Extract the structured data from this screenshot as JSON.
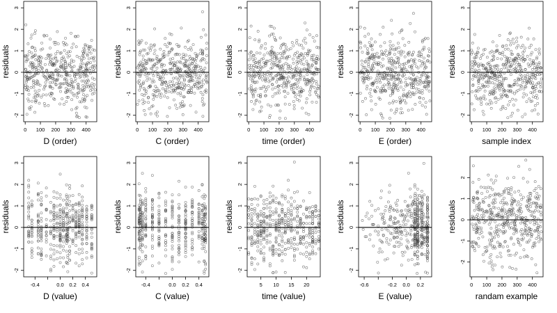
{
  "figure": {
    "layout": "2x5 grid of residual scatter plots",
    "point_style": "open circles",
    "reference_line": "horizontal line at y = 0"
  },
  "chart_data": [
    {
      "id": "p1",
      "type": "scatter",
      "xlabel": "D (order)",
      "ylabel": "residuals",
      "xlim": [
        -10,
        470
      ],
      "ylim": [
        -2.3,
        3.3
      ],
      "xticks": [
        0,
        100,
        200,
        300,
        400
      ],
      "xtick_labels": [
        "0",
        "100",
        "200",
        "300",
        "400"
      ],
      "yticks": [
        -2,
        -1,
        0,
        1,
        2,
        3
      ],
      "ytick_labels": [
        "-2",
        "-1",
        "0",
        "1",
        "2",
        "3"
      ],
      "n_points": 460,
      "x_distribution": "uniform",
      "x_range": [
        0,
        460
      ],
      "y_center": 0,
      "y_sd": 0.85,
      "hline": 0
    },
    {
      "id": "p2",
      "type": "scatter",
      "xlabel": "C (order)",
      "ylabel": "residuals",
      "xlim": [
        -10,
        470
      ],
      "ylim": [
        -2.3,
        3.3
      ],
      "xticks": [
        0,
        100,
        200,
        300,
        400
      ],
      "xtick_labels": [
        "0",
        "100",
        "200",
        "300",
        "400"
      ],
      "yticks": [
        -2,
        -1,
        0,
        1,
        2,
        3
      ],
      "ytick_labels": [
        "-2",
        "-1",
        "0",
        "1",
        "2",
        "3"
      ],
      "n_points": 460,
      "x_distribution": "uniform",
      "x_range": [
        0,
        460
      ],
      "y_center": 0,
      "y_sd": 0.85,
      "hline": 0
    },
    {
      "id": "p3",
      "type": "scatter",
      "xlabel": "time (order)",
      "ylabel": "residuals",
      "xlim": [
        -10,
        470
      ],
      "ylim": [
        -2.3,
        3.3
      ],
      "xticks": [
        0,
        100,
        200,
        300,
        400
      ],
      "xtick_labels": [
        "0",
        "100",
        "200",
        "300",
        "400"
      ],
      "yticks": [
        -2,
        -1,
        0,
        1,
        2,
        3
      ],
      "ytick_labels": [
        "-2",
        "-1",
        "0",
        "1",
        "2",
        "3"
      ],
      "n_points": 460,
      "x_distribution": "uniform",
      "x_range": [
        0,
        460
      ],
      "y_center": 0,
      "y_sd": 0.85,
      "hline": 0
    },
    {
      "id": "p4",
      "type": "scatter",
      "xlabel": "E (order)",
      "ylabel": "residuals",
      "xlim": [
        -10,
        470
      ],
      "ylim": [
        -2.3,
        3.3
      ],
      "xticks": [
        0,
        100,
        200,
        300,
        400
      ],
      "xtick_labels": [
        "0",
        "100",
        "200",
        "300",
        "400"
      ],
      "yticks": [
        -2,
        -1,
        0,
        1,
        2,
        3
      ],
      "ytick_labels": [
        "-2",
        "-1",
        "0",
        "1",
        "2",
        "3"
      ],
      "n_points": 460,
      "x_distribution": "uniform",
      "x_range": [
        0,
        460
      ],
      "y_center": 0,
      "y_sd": 0.85,
      "hline": 0
    },
    {
      "id": "p5",
      "type": "scatter",
      "xlabel": "sample index",
      "ylabel": "residuals",
      "xlim": [
        -10,
        470
      ],
      "ylim": [
        -2.3,
        3.3
      ],
      "xticks": [
        0,
        100,
        200,
        300,
        400
      ],
      "xtick_labels": [
        "0",
        "100",
        "200",
        "300",
        "400"
      ],
      "yticks": [
        -2,
        -1,
        0,
        1,
        2,
        3
      ],
      "ytick_labels": [
        "-2",
        "-1",
        "0",
        "1",
        "2",
        "3"
      ],
      "n_points": 460,
      "x_distribution": "uniform",
      "x_range": [
        0,
        460
      ],
      "y_center": 0,
      "y_sd": 0.85,
      "hline": 0
    },
    {
      "id": "p6",
      "type": "scatter",
      "xlabel": "D (value)",
      "ylabel": "residuals",
      "xlim": [
        -0.58,
        0.58
      ],
      "ylim": [
        -2.3,
        3.3
      ],
      "xticks": [
        -0.4,
        -0.2,
        0.0,
        0.2,
        0.4
      ],
      "xtick_labels": [
        "-0.4",
        "",
        "0.0",
        "0.2",
        "0.4"
      ],
      "yticks": [
        -2,
        -1,
        0,
        1,
        2,
        3
      ],
      "ytick_labels": [
        "-2",
        "-1",
        "0",
        "1",
        "2",
        "3"
      ],
      "n_points": 460,
      "x_distribution": "discrete",
      "x_levels": [
        -0.5,
        -0.45,
        -0.35,
        -0.3,
        -0.22,
        -0.15,
        -0.1,
        -0.05,
        0.0,
        0.05,
        0.1,
        0.12,
        0.15,
        0.2,
        0.25,
        0.3,
        0.35,
        0.42,
        0.5
      ],
      "y_center": 0,
      "y_sd": 0.85,
      "hline": 0
    },
    {
      "id": "p7",
      "type": "scatter",
      "xlabel": "C (value)",
      "ylabel": "residuals",
      "xlim": [
        -0.55,
        0.55
      ],
      "ylim": [
        -2.3,
        3.3
      ],
      "xticks": [
        -0.4,
        -0.2,
        0.0,
        0.2,
        0.4
      ],
      "xtick_labels": [
        "-0.4",
        "",
        "0.0",
        "0.2",
        "0.4"
      ],
      "yticks": [
        -2,
        -1,
        0,
        1,
        2,
        3
      ],
      "ytick_labels": [
        "-2",
        "-1",
        "0",
        "1",
        "2",
        "3"
      ],
      "n_points": 460,
      "x_distribution": "discrete",
      "x_levels": [
        -0.5,
        -0.48,
        -0.45,
        -0.4,
        -0.3,
        -0.2,
        -0.1,
        0.0,
        0.1,
        0.2,
        0.3,
        0.4,
        0.45,
        0.48,
        0.5
      ],
      "y_center": 0,
      "y_sd": 0.85,
      "hline": 0
    },
    {
      "id": "p8",
      "type": "scatter",
      "xlabel": "time (value)",
      "ylabel": "residuals",
      "xlim": [
        0.5,
        24.5
      ],
      "ylim": [
        -2.3,
        3.3
      ],
      "xticks": [
        5,
        10,
        15,
        20
      ],
      "xtick_labels": [
        "5",
        "10",
        "15",
        "20"
      ],
      "yticks": [
        -2,
        -1,
        0,
        1,
        2,
        3
      ],
      "ytick_labels": [
        "-2",
        "-1",
        "0",
        "1",
        "2",
        "3"
      ],
      "n_points": 460,
      "x_distribution": "discrete",
      "x_levels": [
        1,
        2,
        3,
        4,
        5,
        6,
        7,
        8,
        9,
        10,
        11,
        12,
        13,
        14,
        15,
        16,
        17,
        18,
        19,
        20,
        21,
        22,
        23,
        24
      ],
      "y_center": 0,
      "y_sd": 0.85,
      "hline": 0
    },
    {
      "id": "p9",
      "type": "scatter",
      "xlabel": "E (value)",
      "ylabel": "residuals",
      "xlim": [
        -0.68,
        0.36
      ],
      "ylim": [
        -2.3,
        3.3
      ],
      "xticks": [
        -0.6,
        -0.4,
        -0.2,
        0.0,
        0.2
      ],
      "xtick_labels": [
        "-0.6",
        "",
        "-0.2",
        "0.0",
        "0.2"
      ],
      "yticks": [
        -2,
        -1,
        0,
        1,
        2,
        3
      ],
      "ytick_labels": [
        "-2",
        "-1",
        "0",
        "1",
        "2",
        "3"
      ],
      "n_points": 460,
      "x_distribution": "skewed-right",
      "x_range": [
        -0.65,
        0.32
      ],
      "x_dense_levels": [
        0.12,
        0.16,
        0.22,
        0.3
      ],
      "y_center": 0,
      "y_sd": 0.85,
      "hline": 0
    },
    {
      "id": "p10",
      "type": "scatter",
      "xlabel": "randam example",
      "ylabel": "residuals",
      "xlim": [
        -10,
        470
      ],
      "ylim": [
        -2.7,
        3.0
      ],
      "xticks": [
        0,
        100,
        200,
        300,
        400
      ],
      "xtick_labels": [
        "0",
        "100",
        "200",
        "300",
        "400"
      ],
      "yticks": [
        -2,
        -1,
        0,
        1,
        2
      ],
      "ytick_labels": [
        "-2",
        "-1",
        "0",
        "1",
        "2"
      ],
      "n_points": 460,
      "x_distribution": "uniform",
      "x_range": [
        0,
        460
      ],
      "y_center": 0,
      "y_sd": 0.95,
      "hline": 0
    }
  ]
}
